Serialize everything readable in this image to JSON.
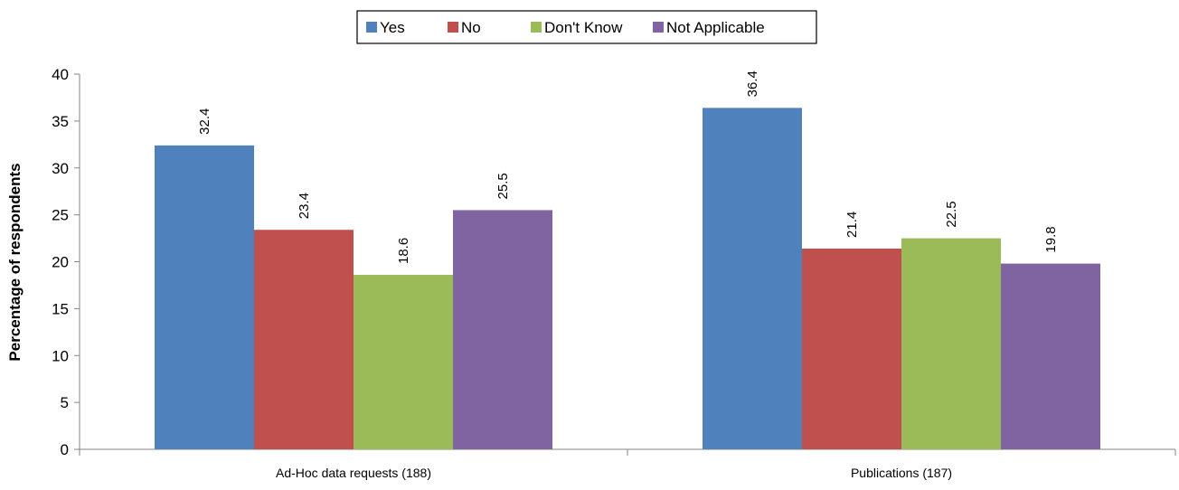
{
  "chart_data": {
    "type": "bar",
    "title": "",
    "xlabel": "",
    "ylabel": "Percentage of respondents",
    "ylim": [
      0,
      40
    ],
    "yticks": [
      0,
      5,
      10,
      15,
      20,
      25,
      30,
      35,
      40
    ],
    "categories": [
      "Ad-Hoc data requests (188)",
      "Publications (187)"
    ],
    "series": [
      {
        "name": "Yes",
        "color": "#4F81BD",
        "values": [
          32.4,
          36.4
        ]
      },
      {
        "name": "No",
        "color": "#C0504D",
        "values": [
          23.4,
          21.4
        ]
      },
      {
        "name": "Don't Know",
        "color": "#9BBB59",
        "values": [
          18.6,
          22.5
        ]
      },
      {
        "name": "Not Applicable",
        "color": "#8064A2",
        "values": [
          25.5,
          19.8
        ]
      }
    ],
    "grid": false,
    "legend_position": "top-center",
    "data_labels": true
  }
}
